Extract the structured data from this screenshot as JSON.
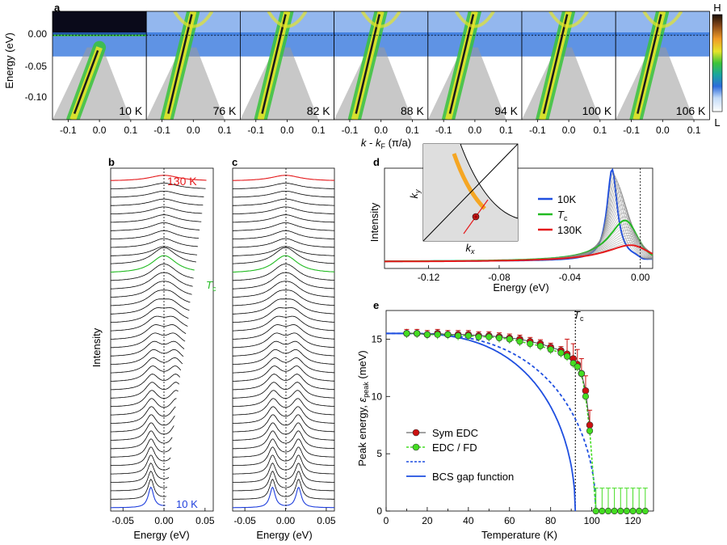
{
  "chart_data": [
    {
      "id": "a",
      "type": "heatmap",
      "panel_label": "a",
      "title": "",
      "ylabel": "Energy (eV)",
      "xlabel": "k - kF (π/a)",
      "xticks": [
        "-0.1",
        "0.0",
        "0.1"
      ],
      "yticks": [
        "0.00",
        "-0.05",
        "-0.10"
      ],
      "ylim": [
        -0.14,
        0.04
      ],
      "xlim": [
        -0.15,
        0.15
      ],
      "temperatures": [
        "10 K",
        "76 K",
        "82 K",
        "88 K",
        "94 K",
        "100 K",
        "106 K"
      ],
      "colorbar": {
        "high_label": "H",
        "low_label": "L",
        "colors": [
          "#4a2a12",
          "#e47b1a",
          "#e6e62a",
          "#39c43a",
          "#1c9e96",
          "#2a6fdb",
          "#bcd7f7",
          "#ffffff"
        ]
      }
    },
    {
      "id": "b",
      "type": "line",
      "panel_label": "b",
      "xlabel": "Energy (eV)",
      "ylabel": "Intensity",
      "xticks": [
        "-0.05",
        "0.00",
        "0.05"
      ],
      "xlim": [
        -0.065,
        0.06
      ],
      "label_top": "130 K",
      "label_tc": "Tc",
      "label_bottom": "10 K",
      "curve_count": 40,
      "colors": {
        "top": "#e41a1c",
        "tc": "#22bb22",
        "bottom": "#1f3fdd",
        "other": "#000000"
      }
    },
    {
      "id": "c",
      "type": "line",
      "panel_label": "c",
      "xlabel": "Energy (eV)",
      "xticks": [
        "-0.05",
        "0.00",
        "0.05"
      ],
      "xlim": [
        -0.065,
        0.06
      ],
      "curve_count": 40
    },
    {
      "id": "d",
      "type": "line",
      "panel_label": "d",
      "xlabel": "Energy (eV)",
      "ylabel": "Intensity",
      "xticks": [
        "-0.12",
        "-0.08",
        "-0.04",
        "0.00"
      ],
      "xlim": [
        -0.145,
        0.007
      ],
      "legend": [
        {
          "name": "10K",
          "color": "#1f4fe0"
        },
        {
          "name": "Tc",
          "color": "#22bb22"
        },
        {
          "name": "130K",
          "color": "#e41a1c"
        }
      ],
      "inset_xlabel": "kx",
      "inset_ylabel": "ky"
    },
    {
      "id": "e",
      "type": "scatter",
      "panel_label": "e",
      "title": "",
      "xlabel": "Temperature (K)",
      "ylabel": "Peak energy, εpeak (meV)",
      "xlim": [
        0,
        130
      ],
      "ylim": [
        0,
        17.5
      ],
      "xticks": [
        0,
        10,
        20,
        30,
        40,
        50,
        60,
        70,
        80,
        90,
        100,
        110,
        120
      ],
      "yticks": [
        0,
        5,
        10,
        15
      ],
      "tc": 92,
      "tc_label": "Tc",
      "series": [
        {
          "name": "Sym EDC",
          "color": "#cc1111",
          "x": [
            10,
            15,
            20,
            25,
            30,
            35,
            40,
            45,
            50,
            55,
            60,
            65,
            70,
            75,
            80,
            85,
            88,
            91,
            93,
            95,
            97,
            99
          ],
          "y": [
            15.5,
            15.5,
            15.4,
            15.5,
            15.4,
            15.4,
            15.4,
            15.3,
            15.3,
            15.2,
            15.1,
            15.0,
            14.8,
            14.6,
            14.3,
            14.0,
            13.7,
            13.3,
            12.8,
            12.0,
            10.5,
            7.5
          ]
        },
        {
          "name": "EDC / FD",
          "color": "#44dd22",
          "x": [
            10,
            15,
            20,
            25,
            30,
            35,
            40,
            45,
            50,
            55,
            60,
            65,
            70,
            75,
            80,
            85,
            88,
            91,
            93,
            95,
            97,
            99,
            102,
            105,
            108,
            111,
            114,
            117,
            120,
            123,
            126
          ],
          "y": [
            15.5,
            15.5,
            15.4,
            15.4,
            15.4,
            15.3,
            15.3,
            15.2,
            15.2,
            15.1,
            15.0,
            14.8,
            14.6,
            14.4,
            14.1,
            13.8,
            13.5,
            12.9,
            12.6,
            12.0,
            10.0,
            7.0,
            0,
            0,
            0,
            0,
            0,
            0,
            0,
            0,
            0
          ]
        },
        {
          "name": "BCS gap function",
          "color": "#1f4fe0",
          "style": "solid",
          "tc": 92,
          "delta0": 15.5
        },
        {
          "name": "BCS gap function (dashed)",
          "color": "#1f4fe0",
          "style": "dashed",
          "tc": 102,
          "delta0": 15.5
        }
      ],
      "legend": [
        "Sym EDC",
        "EDC / FD",
        "",
        "BCS gap function"
      ]
    }
  ]
}
